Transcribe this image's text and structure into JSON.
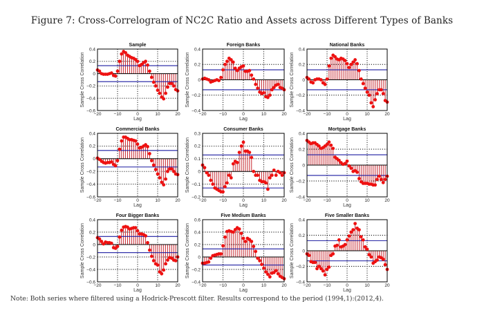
{
  "figure": {
    "title": "Figure 7: Cross-Correlogram of NC2C Ratio and Assets across Different Types of Banks",
    "note": "Note: Both series where filtered using a Hodrick-Prescott filter. Results correspond to the period (1994,1):(2012,4)."
  },
  "colors": {
    "stem": "#c0101a",
    "marker": "#ee1111",
    "bound": "#1a1aa0",
    "axis": "#000000",
    "grid": "#000000"
  },
  "chart_data": [
    {
      "type": "stem",
      "title": "Sample",
      "xlabel": "Lag",
      "ylabel": "Sample Cross Correlation",
      "xlim": [
        -20,
        20
      ],
      "ylim": [
        -0.6,
        0.4
      ],
      "xticks": [
        -20,
        -10,
        0,
        10,
        20
      ],
      "yticks": [
        -0.6,
        -0.4,
        -0.2,
        0,
        0.2,
        0.4
      ],
      "ytick_labels": [
        "-0.6",
        "-0.4",
        "-0.2",
        "0",
        "0.2",
        "0.4"
      ],
      "grid": "dotted",
      "bounds": [
        0.13,
        -0.13
      ],
      "x": [
        -20,
        -19,
        -18,
        -17,
        -16,
        -15,
        -14,
        -13,
        -12,
        -11,
        -10,
        -9,
        -8,
        -7,
        -6,
        -5,
        -4,
        -3,
        -2,
        -1,
        0,
        1,
        2,
        3,
        4,
        5,
        6,
        7,
        8,
        9,
        10,
        11,
        12,
        13,
        14,
        15,
        16,
        17,
        18,
        19,
        20
      ],
      "values": [
        0.06,
        0.04,
        0.0,
        -0.01,
        -0.01,
        -0.01,
        0.0,
        0.01,
        -0.03,
        -0.04,
        0.04,
        0.2,
        0.32,
        0.36,
        0.34,
        0.3,
        0.28,
        0.26,
        0.25,
        0.23,
        0.2,
        0.13,
        0.15,
        0.18,
        0.2,
        0.14,
        0.04,
        -0.06,
        -0.14,
        -0.2,
        -0.27,
        -0.32,
        -0.38,
        -0.41,
        -0.32,
        -0.22,
        -0.16,
        -0.16,
        -0.2,
        -0.26,
        -0.28
      ]
    },
    {
      "type": "stem",
      "title": "Foreign Banks",
      "xlabel": "Lag",
      "ylabel": "Sample Cross Correlation",
      "xlim": [
        -20,
        20
      ],
      "ylim": [
        -0.4,
        0.4
      ],
      "xticks": [
        -20,
        -10,
        0,
        10,
        20
      ],
      "yticks": [
        -0.4,
        -0.2,
        0,
        0.2,
        0.4
      ],
      "ytick_labels": [
        "-0.4",
        "-0.2",
        "0",
        "0.2",
        "0.4"
      ],
      "grid": "dotted",
      "bounds": [
        0.13,
        -0.13
      ],
      "x": [
        -20,
        -19,
        -18,
        -17,
        -16,
        -15,
        -14,
        -13,
        -12,
        -11,
        -10,
        -9,
        -8,
        -7,
        -6,
        -5,
        -4,
        -3,
        -2,
        -1,
        0,
        1,
        2,
        3,
        4,
        5,
        6,
        7,
        8,
        9,
        10,
        11,
        12,
        13,
        14,
        15,
        16,
        17,
        18,
        19,
        20
      ],
      "values": [
        0.01,
        0.02,
        0.01,
        0.0,
        -0.03,
        -0.02,
        -0.01,
        0.0,
        -0.01,
        0.03,
        0.13,
        0.2,
        0.24,
        0.28,
        0.26,
        0.23,
        0.15,
        0.12,
        0.15,
        0.17,
        0.18,
        0.11,
        0.11,
        0.12,
        0.06,
        0.01,
        -0.06,
        -0.11,
        -0.16,
        -0.18,
        -0.17,
        -0.22,
        -0.23,
        -0.2,
        -0.13,
        -0.1,
        -0.07,
        -0.06,
        -0.1,
        -0.11,
        -0.13
      ]
    },
    {
      "type": "stem",
      "title": "National Banks",
      "xlabel": "Lag",
      "ylabel": "Sample Cross Correlation",
      "xlim": [
        -20,
        20
      ],
      "ylim": [
        -0.4,
        0.4
      ],
      "xticks": [
        -20,
        -10,
        0,
        10,
        20
      ],
      "yticks": [
        -0.4,
        -0.2,
        0,
        0.2,
        0.4
      ],
      "ytick_labels": [
        "-0.4",
        "-0.2",
        "0",
        "0.2",
        "0.4"
      ],
      "grid": "dotted",
      "bounds": [
        0.13,
        -0.13
      ],
      "x": [
        -20,
        -19,
        -18,
        -17,
        -16,
        -15,
        -14,
        -13,
        -12,
        -11,
        -10,
        -9,
        -8,
        -7,
        -6,
        -5,
        -4,
        -3,
        -2,
        -1,
        0,
        1,
        2,
        3,
        4,
        5,
        6,
        7,
        8,
        9,
        10,
        11,
        12,
        13,
        14,
        15,
        16,
        17,
        18,
        19,
        20
      ],
      "values": [
        0.03,
        0.01,
        -0.03,
        -0.04,
        0.0,
        0.01,
        0.01,
        0.0,
        -0.04,
        -0.06,
        0.01,
        0.18,
        0.28,
        0.32,
        0.3,
        0.27,
        0.26,
        0.28,
        0.27,
        0.25,
        0.21,
        0.16,
        0.2,
        0.23,
        0.26,
        0.21,
        0.12,
        0.01,
        -0.05,
        -0.11,
        -0.16,
        -0.2,
        -0.3,
        -0.35,
        -0.26,
        -0.18,
        -0.13,
        -0.13,
        -0.18,
        -0.27,
        -0.29
      ]
    },
    {
      "type": "stem",
      "title": "Commercial Banks",
      "xlabel": "Lag",
      "ylabel": "Sample Cross Correlation",
      "xlim": [
        -20,
        20
      ],
      "ylim": [
        -0.6,
        0.4
      ],
      "xticks": [
        -20,
        -10,
        0,
        10,
        20
      ],
      "yticks": [
        -0.6,
        -0.4,
        -0.2,
        0,
        0.2,
        0.4
      ],
      "ytick_labels": [
        "-0.6",
        "-0.4",
        "-0.2",
        "0",
        "0.2",
        "0.4"
      ],
      "grid": "dotted",
      "bounds": [
        0.13,
        -0.13
      ],
      "x": [
        -20,
        -19,
        -18,
        -17,
        -16,
        -15,
        -14,
        -13,
        -12,
        -11,
        -10,
        -9,
        -8,
        -7,
        -6,
        -5,
        -4,
        -3,
        -2,
        -1,
        0,
        1,
        2,
        3,
        4,
        5,
        6,
        7,
        8,
        9,
        10,
        11,
        12,
        13,
        14,
        15,
        16,
        17,
        18,
        19,
        20
      ],
      "values": [
        0.01,
        -0.01,
        -0.04,
        -0.06,
        -0.07,
        -0.06,
        -0.06,
        -0.05,
        -0.09,
        -0.11,
        -0.03,
        0.15,
        0.28,
        0.34,
        0.34,
        0.32,
        0.3,
        0.3,
        0.29,
        0.28,
        0.23,
        0.17,
        0.18,
        0.2,
        0.22,
        0.19,
        0.08,
        -0.03,
        -0.1,
        -0.17,
        -0.24,
        -0.3,
        -0.37,
        -0.41,
        -0.32,
        -0.2,
        -0.16,
        -0.16,
        -0.2,
        -0.24,
        -0.25
      ]
    },
    {
      "type": "stem",
      "title": "Consumer Banks",
      "xlabel": "Lag",
      "ylabel": "Sample Cross Correlation",
      "xlim": [
        -20,
        20
      ],
      "ylim": [
        -0.2,
        0.3
      ],
      "xticks": [
        -20,
        -10,
        0,
        10,
        20
      ],
      "yticks": [
        -0.2,
        -0.1,
        0,
        0.1,
        0.2,
        0.3
      ],
      "ytick_labels": [
        "-0.2",
        "-0.1",
        "0",
        "0.1",
        "0.2",
        "0.3"
      ],
      "grid": "dotted",
      "bounds": [
        0.13,
        -0.13
      ],
      "x": [
        -20,
        -19,
        -18,
        -17,
        -16,
        -15,
        -14,
        -13,
        -12,
        -11,
        -10,
        -9,
        -8,
        -7,
        -6,
        -5,
        -4,
        -3,
        -2,
        -1,
        0,
        1,
        2,
        3,
        4,
        5,
        6,
        7,
        8,
        9,
        10,
        11,
        12,
        13,
        14,
        15,
        16,
        17,
        18,
        19,
        20
      ],
      "values": [
        0.05,
        0.03,
        -0.01,
        -0.03,
        -0.07,
        -0.1,
        -0.13,
        -0.14,
        -0.15,
        -0.16,
        -0.16,
        -0.12,
        -0.09,
        -0.03,
        -0.05,
        0.06,
        0.08,
        0.07,
        0.15,
        0.2,
        0.23,
        0.16,
        0.16,
        0.15,
        0.11,
        0.0,
        -0.03,
        -0.03,
        -0.07,
        -0.08,
        -0.08,
        -0.09,
        -0.14,
        -0.05,
        -0.03,
        0.01,
        -0.03,
        0.0,
        -0.01,
        -0.03,
        -0.01
      ]
    },
    {
      "type": "stem",
      "title": "Mortgage Banks",
      "xlabel": "Lag",
      "ylabel": "Sample Cross Correlation",
      "xlim": [
        -20,
        20
      ],
      "ylim": [
        -0.4,
        0.4
      ],
      "xticks": [
        -20,
        -10,
        0,
        10,
        20
      ],
      "yticks": [
        -0.4,
        -0.2,
        0,
        0.2,
        0.4
      ],
      "ytick_labels": [
        "-0.4",
        "-0.2",
        "0",
        "0.2",
        "0.4"
      ],
      "grid": "dotted",
      "bounds": [
        0.13,
        -0.13
      ],
      "x": [
        -20,
        -19,
        -18,
        -17,
        -16,
        -15,
        -14,
        -13,
        -12,
        -11,
        -10,
        -9,
        -8,
        -7,
        -6,
        -5,
        -4,
        -3,
        -2,
        -1,
        0,
        1,
        2,
        3,
        4,
        5,
        6,
        7,
        8,
        9,
        10,
        11,
        12,
        13,
        14,
        15,
        16,
        17,
        18,
        19,
        20
      ],
      "values": [
        0.31,
        0.29,
        0.27,
        0.28,
        0.28,
        0.26,
        0.24,
        0.21,
        0.22,
        0.24,
        0.26,
        0.29,
        0.25,
        0.21,
        0.1,
        0.08,
        0.06,
        0.03,
        0.01,
        0.02,
        0.05,
        -0.01,
        -0.04,
        -0.08,
        -0.07,
        -0.09,
        -0.17,
        -0.21,
        -0.23,
        -0.23,
        -0.23,
        -0.24,
        -0.24,
        -0.25,
        -0.25,
        -0.18,
        -0.14,
        -0.18,
        -0.22,
        -0.18,
        -0.14
      ]
    },
    {
      "type": "stem",
      "title": "Four Bigger Banks",
      "xlabel": "Lag",
      "ylabel": "Sample Cross Correlation",
      "xlim": [
        -20,
        20
      ],
      "ylim": [
        -0.6,
        0.4
      ],
      "xticks": [
        -20,
        -10,
        0,
        10,
        20
      ],
      "yticks": [
        -0.6,
        -0.4,
        -0.2,
        0,
        0.2,
        0.4
      ],
      "ytick_labels": [
        "-0.6",
        "-0.4",
        "-0.2",
        "0",
        "0.2",
        "0.4"
      ],
      "grid": "dotted",
      "bounds": [
        0.13,
        -0.13
      ],
      "x": [
        -20,
        -19,
        -18,
        -17,
        -16,
        -15,
        -14,
        -13,
        -12,
        -11,
        -10,
        -9,
        -8,
        -7,
        -6,
        -5,
        -4,
        -3,
        -2,
        -1,
        0,
        1,
        2,
        3,
        4,
        5,
        6,
        7,
        8,
        9,
        10,
        11,
        12,
        13,
        14,
        15,
        16,
        17,
        18,
        19,
        20
      ],
      "values": [
        0.11,
        0.09,
        0.05,
        0.01,
        0.04,
        0.03,
        0.03,
        0.02,
        -0.05,
        -0.06,
        -0.03,
        0.12,
        0.23,
        0.28,
        0.29,
        0.28,
        0.25,
        0.26,
        0.27,
        0.27,
        0.22,
        0.17,
        0.17,
        0.16,
        0.14,
        0.03,
        -0.09,
        -0.19,
        -0.26,
        -0.31,
        -0.33,
        -0.44,
        -0.47,
        -0.41,
        -0.31,
        -0.25,
        -0.21,
        -0.22,
        -0.25,
        -0.26,
        -0.2
      ]
    },
    {
      "type": "stem",
      "title": "Five Medium Banks",
      "xlabel": "Lag",
      "ylabel": "Sample Cross Correlation",
      "xlim": [
        -20,
        20
      ],
      "ylim": [
        -0.4,
        0.6
      ],
      "xticks": [
        -20,
        -10,
        0,
        10,
        20
      ],
      "yticks": [
        -0.4,
        -0.2,
        0,
        0.2,
        0.4,
        0.6
      ],
      "ytick_labels": [
        "-0.4",
        "-0.2",
        "0",
        "0.2",
        "0.4",
        "0.6"
      ],
      "grid": "dotted",
      "bounds": [
        0.13,
        -0.13
      ],
      "x": [
        -20,
        -19,
        -18,
        -17,
        -16,
        -15,
        -14,
        -13,
        -12,
        -11,
        -10,
        -9,
        -8,
        -7,
        -6,
        -5,
        -4,
        -3,
        -2,
        -1,
        0,
        1,
        2,
        3,
        4,
        5,
        6,
        7,
        8,
        9,
        10,
        11,
        12,
        13,
        14,
        15,
        16,
        17,
        18,
        19,
        20
      ],
      "values": [
        -0.1,
        -0.1,
        -0.09,
        -0.08,
        -0.02,
        0.02,
        0.03,
        0.04,
        0.05,
        0.05,
        0.18,
        0.32,
        0.41,
        0.42,
        0.41,
        0.4,
        0.44,
        0.47,
        0.45,
        0.38,
        0.3,
        0.25,
        0.3,
        0.28,
        0.25,
        0.17,
        0.09,
        -0.02,
        -0.06,
        -0.12,
        -0.18,
        -0.24,
        -0.28,
        -0.32,
        -0.26,
        -0.25,
        -0.22,
        -0.27,
        -0.31,
        -0.33,
        -0.35
      ]
    },
    {
      "type": "stem",
      "title": "Five Smaller Banks",
      "xlabel": "Lag",
      "ylabel": "Sample Cross Correlation",
      "xlim": [
        -20,
        20
      ],
      "ylim": [
        -0.4,
        0.4
      ],
      "xticks": [
        -20,
        -10,
        0,
        10,
        20
      ],
      "yticks": [
        -0.4,
        -0.2,
        0,
        0.2,
        0.4
      ],
      "ytick_labels": [
        "-0.4",
        "-0.2",
        "0",
        "0.2",
        "0.4"
      ],
      "grid": "dotted",
      "bounds": [
        0.13,
        -0.13
      ],
      "x": [
        -20,
        -19,
        -18,
        -17,
        -16,
        -15,
        -14,
        -13,
        -12,
        -11,
        -10,
        -9,
        -8,
        -7,
        -6,
        -5,
        -4,
        -3,
        -2,
        -1,
        0,
        1,
        2,
        3,
        4,
        5,
        6,
        7,
        8,
        9,
        10,
        11,
        12,
        13,
        14,
        15,
        16,
        17,
        18,
        19,
        20
      ],
      "values": [
        -0.04,
        -0.06,
        -0.14,
        -0.15,
        -0.15,
        -0.23,
        -0.2,
        -0.23,
        -0.26,
        -0.31,
        -0.24,
        -0.21,
        -0.06,
        -0.04,
        0.06,
        0.07,
        0.14,
        0.05,
        0.06,
        0.08,
        0.14,
        0.19,
        0.24,
        0.27,
        0.35,
        0.29,
        0.27,
        0.18,
        0.14,
        0.05,
        0.02,
        -0.05,
        -0.08,
        -0.16,
        -0.14,
        -0.12,
        -0.08,
        -0.09,
        -0.11,
        -0.18,
        -0.24
      ]
    }
  ]
}
